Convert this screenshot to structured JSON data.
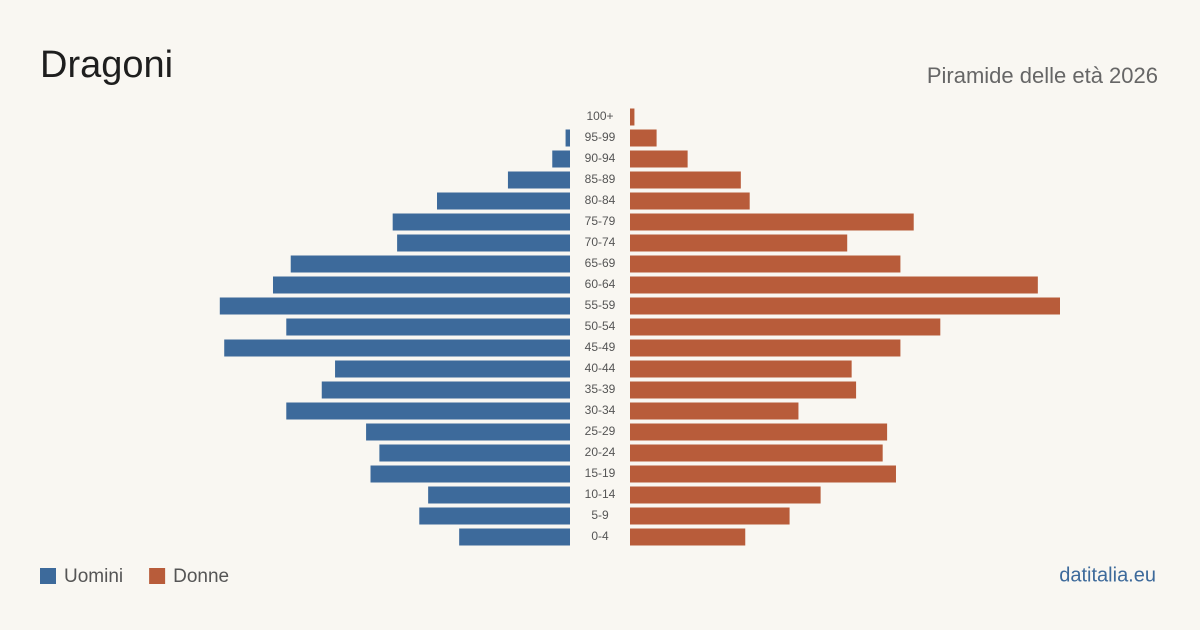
{
  "chart_data": {
    "type": "pyramid",
    "title": "Dragoni",
    "subtitle": "Piramide delle età 2026",
    "source": "datitalia.eu",
    "categories": [
      "100+",
      "95-99",
      "90-94",
      "85-89",
      "80-84",
      "75-79",
      "70-74",
      "65-69",
      "60-64",
      "55-59",
      "50-54",
      "45-49",
      "40-44",
      "35-39",
      "30-34",
      "25-29",
      "20-24",
      "15-19",
      "10-14",
      "5-9",
      "0-4"
    ],
    "series": [
      {
        "name": "Uomini",
        "color": "#3d6a9b",
        "values": [
          0,
          1,
          4,
          14,
          30,
          40,
          39,
          63,
          67,
          79,
          64,
          78,
          53,
          56,
          64,
          46,
          43,
          45,
          32,
          34,
          25
        ]
      },
      {
        "name": "Donne",
        "color": "#b85c3a",
        "values": [
          1,
          6,
          13,
          25,
          27,
          64,
          49,
          61,
          92,
          97,
          70,
          61,
          50,
          51,
          38,
          58,
          57,
          60,
          43,
          36,
          26
        ]
      }
    ]
  }
}
